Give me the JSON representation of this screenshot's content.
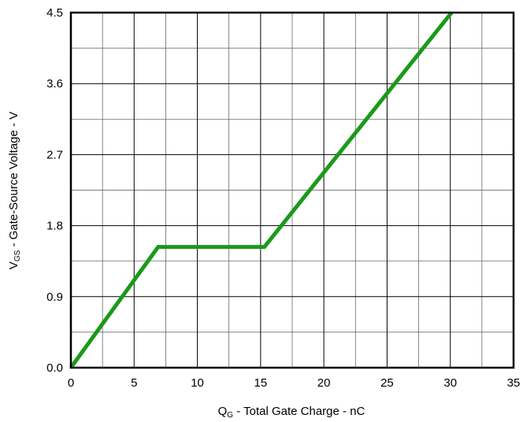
{
  "chart_data": {
    "type": "line",
    "title": "",
    "xlabel": {
      "main": "Q",
      "sub": "G",
      "rest": " - Total Gate Charge - nC"
    },
    "ylabel": {
      "main": "V",
      "sub": "GS",
      "rest": " - Gate-Source Voltage - V"
    },
    "xlim": [
      0,
      35
    ],
    "ylim": [
      0,
      4.5
    ],
    "x_ticks": [
      "0",
      "5",
      "10",
      "15",
      "20",
      "25",
      "30",
      "35"
    ],
    "y_ticks": [
      "0.0",
      "0.9",
      "1.8",
      "2.7",
      "3.6",
      "4.5"
    ],
    "grid": true,
    "x_minor_step": 2.5,
    "y_minor_step": 0.45,
    "series": [
      {
        "color": "#1a9a1a",
        "x": [
          0,
          6.9,
          15.3,
          30.1
        ],
        "y": [
          0,
          1.53,
          1.53,
          4.5
        ]
      }
    ]
  }
}
